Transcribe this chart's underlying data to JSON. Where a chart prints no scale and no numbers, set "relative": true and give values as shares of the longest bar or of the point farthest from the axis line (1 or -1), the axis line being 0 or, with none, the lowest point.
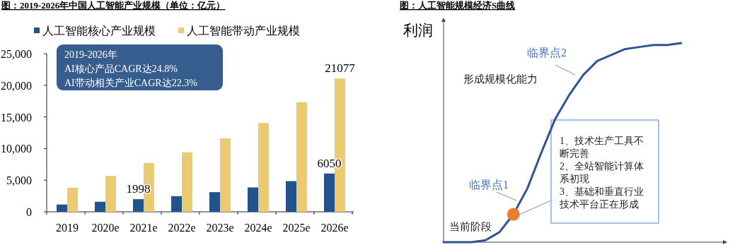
{
  "chart_data": [
    {
      "type": "bar",
      "title": "图：2019-2026年中国人工智能产业规模（单位：亿元）",
      "categories": [
        "2019",
        "2020e",
        "2021e",
        "2022e",
        "2023e",
        "2024e",
        "2025e",
        "2026e"
      ],
      "series": [
        {
          "name": "人工智能核心产业规模",
          "color": "#23538a",
          "values": [
            1150,
            1590,
            1998,
            2480,
            3110,
            3850,
            4850,
            6050
          ],
          "value_labels": [
            null,
            null,
            "1998",
            null,
            null,
            null,
            null,
            "6050"
          ]
        },
        {
          "name": "人工智能带动产业规模",
          "color": "#ecca70",
          "values": [
            3815,
            5670,
            7700,
            9400,
            11600,
            14040,
            17330,
            21077
          ],
          "value_labels": [
            null,
            null,
            null,
            null,
            null,
            null,
            null,
            "21077"
          ]
        }
      ],
      "ylim": [
        0,
        25000
      ],
      "yticks": [
        {
          "value": 0,
          "label": "0"
        },
        {
          "value": 5000,
          "label": "5,000"
        },
        {
          "value": 10000,
          "label": "10,000"
        },
        {
          "value": 15000,
          "label": "15,000"
        },
        {
          "value": 20000,
          "label": "20,000"
        },
        {
          "value": 25000,
          "label": "25,000"
        }
      ],
      "grid": false,
      "legend": "top",
      "annotations": [
        "2019-2026年\nAI核心产品CAGR达24.8%\nAI带动相关产业CAGR达22.3%"
      ]
    },
    {
      "type": "line",
      "title": "图：人工智能规模经济S曲线",
      "ylabel": "利润",
      "relative": true,
      "categories": [
        null,
        null,
        null,
        null,
        null,
        null,
        null,
        null,
        null,
        null,
        null,
        null,
        null,
        null,
        null,
        null,
        null,
        null
      ],
      "series": [
        {
          "color": "#2f5597",
          "values": [
            0,
            0,
            0,
            0.01,
            0.05,
            0.14,
            0.27,
            0.45,
            0.62,
            0.74,
            0.84,
            0.91,
            0.94,
            0.97,
            0.98,
            0.99,
            0.99,
            1.0
          ]
        }
      ],
      "line_style": "solid",
      "annotations": [
        "临界点2",
        "形成规模化能力",
        "临界点1",
        "当前阶段",
        "1、技术生产工具不断完善\n2、全站智能计算体系初现\n3、基础和垂直行业技术平台正在形成"
      ]
    }
  ]
}
